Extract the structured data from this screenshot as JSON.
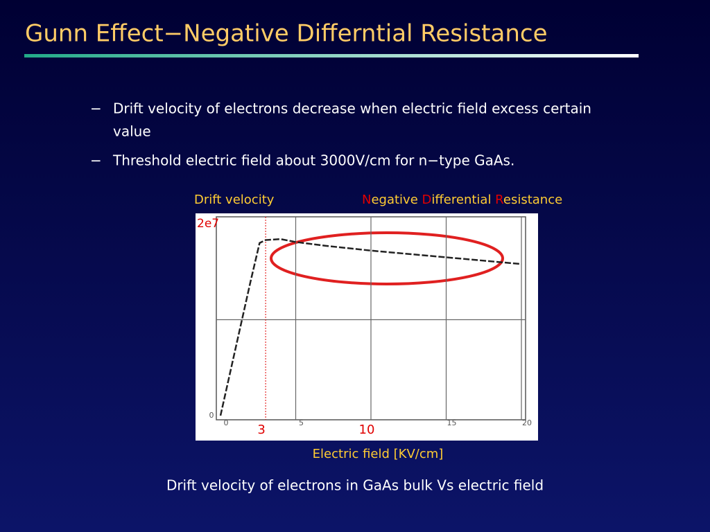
{
  "title": "Gunn Effect−Negative Differntial Resistance",
  "bullets": [
    {
      "marker": "−",
      "lines": [
        "Drift velocity of electrons decrease when electric field excess certain",
        "value"
      ]
    },
    {
      "marker": "−",
      "lines": [
        "Threshold electric field about 3000V/cm for n−type GaAs."
      ]
    }
  ],
  "chart_data": {
    "type": "line",
    "ylabel": "Drift velocity",
    "xlabel": "Electric field [KV/cm]",
    "annotation": [
      {
        "text": "N",
        "color": "#e00000"
      },
      {
        "text": "egative ",
        "color": "#ffcc33"
      },
      {
        "text": "D",
        "color": "#e00000"
      },
      {
        "text": "ifferential ",
        "color": "#ffcc33"
      },
      {
        "text": "R",
        "color": "#e00000"
      },
      {
        "text": "esistance",
        "color": "#ffcc33"
      }
    ],
    "x": [
      0,
      1,
      2,
      2.6,
      3,
      4,
      5,
      7,
      10,
      15,
      20
    ],
    "series": [
      {
        "color": "#222222",
        "values": [
          0,
          7000000,
          14000000,
          18000000,
          18300000,
          18400000,
          18100000,
          17700000,
          17200000,
          16500000,
          15800000
        ]
      }
    ],
    "xlim": [
      0,
      20
    ],
    "ylim": [
      0,
      20000000
    ],
    "xticks": [
      0,
      5,
      15,
      20
    ],
    "yticks": [
      0,
      {
        "value": 20000000,
        "label": "2e7"
      }
    ],
    "xgrid": [
      5,
      10,
      15,
      20
    ],
    "ygrid": [
      10000000
    ],
    "x_markers": [
      3,
      10
    ],
    "marker_color": "#e00000",
    "ref_line_x": 3
  },
  "caption": "Drift velocity of electrons in GaAs bulk Vs electric field"
}
